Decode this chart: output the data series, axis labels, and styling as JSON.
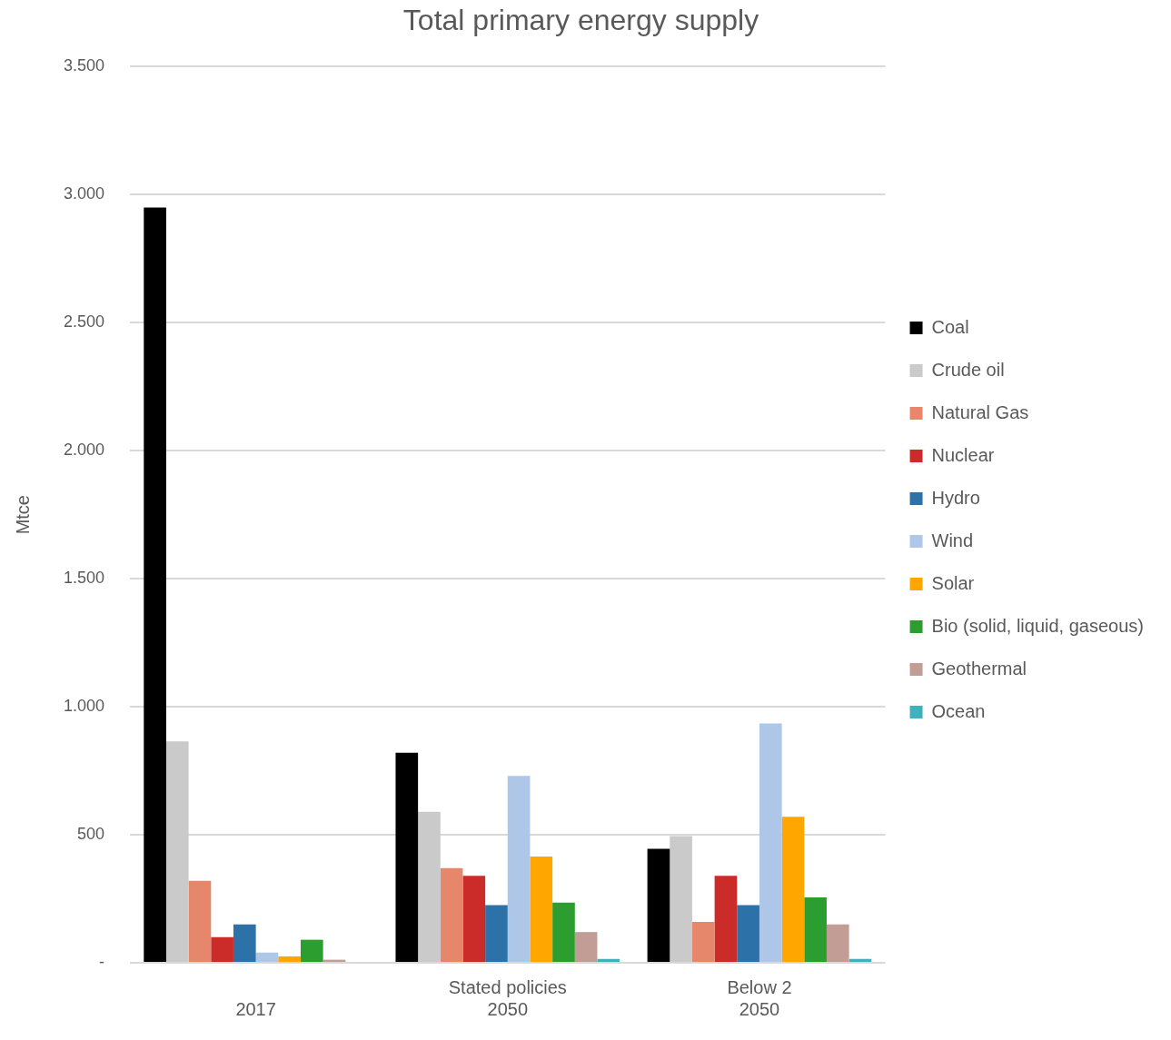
{
  "chart_data": {
    "type": "bar",
    "title": "Total primary energy supply",
    "ylabel": "Mtce",
    "categories": [
      "\n2017",
      "Stated policies\n2050",
      "Below 2\n2050"
    ],
    "series": [
      {
        "name": "Coal",
        "color": "#000000",
        "values": [
          2950,
          820,
          445
        ]
      },
      {
        "name": "Crude oil",
        "color": "#c9cac9",
        "values": [
          865,
          590,
          495
        ]
      },
      {
        "name": "Natural Gas",
        "color": "#e6876b",
        "values": [
          320,
          370,
          160
        ]
      },
      {
        "name": "Nuclear",
        "color": "#cb2c2a",
        "values": [
          100,
          340,
          340
        ]
      },
      {
        "name": "Hydro",
        "color": "#2c72a8",
        "values": [
          150,
          225,
          225
        ]
      },
      {
        "name": "Wind",
        "color": "#aec6e8",
        "values": [
          40,
          730,
          935
        ]
      },
      {
        "name": "Solar",
        "color": "#ffa600",
        "values": [
          25,
          415,
          570
        ]
      },
      {
        "name": "Bio (solid, liquid, gaseous)",
        "color": "#2c9e30",
        "values": [
          90,
          235,
          255
        ]
      },
      {
        "name": "Geothermal",
        "color": "#c29d95",
        "values": [
          12,
          120,
          150
        ]
      },
      {
        "name": "Ocean",
        "color": "#3fb1bd",
        "values": [
          null,
          15,
          15
        ]
      }
    ],
    "ylim": [
      0,
      3500
    ],
    "yticks": [
      {
        "value": 0,
        "label": "-"
      },
      {
        "value": 500,
        "label": "500"
      },
      {
        "value": 1000,
        "label": "1.000"
      },
      {
        "value": 1500,
        "label": "1.500"
      },
      {
        "value": 2000,
        "label": "2.000"
      },
      {
        "value": 2500,
        "label": "2.500"
      },
      {
        "value": 3000,
        "label": "3.000"
      },
      {
        "value": 3500,
        "label": "3.500"
      }
    ],
    "grid": "y",
    "legend": "right"
  }
}
